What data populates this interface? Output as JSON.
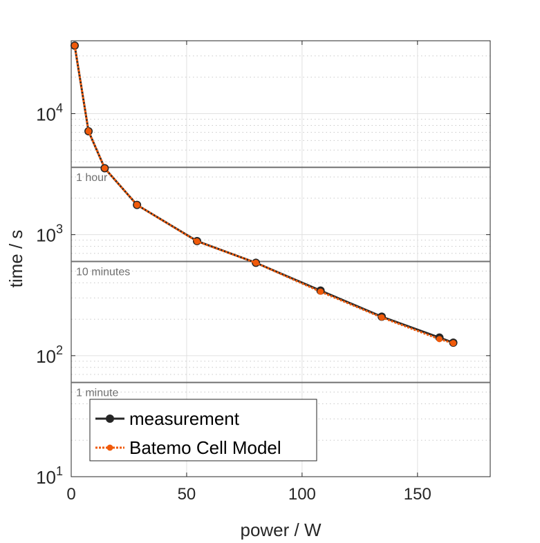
{
  "chart_data": {
    "type": "line",
    "title": "",
    "xlabel": "power / W",
    "ylabel": "time / s",
    "xlim": [
      0,
      181.5
    ],
    "ylim": [
      10,
      40000
    ],
    "yscale": "log",
    "grid": true,
    "xticks": [
      0,
      50,
      100,
      150
    ],
    "xtick_labels": [
      "0",
      "50",
      "100",
      "150"
    ],
    "yticks": [
      10,
      100,
      1000,
      10000
    ],
    "ytick_labels": [
      {
        "base": "10",
        "exp": "1"
      },
      {
        "base": "10",
        "exp": "2"
      },
      {
        "base": "10",
        "exp": "3"
      },
      {
        "base": "10",
        "exp": "4"
      }
    ],
    "reference_lines": [
      {
        "label": "1 hour",
        "y": 3600
      },
      {
        "label": "10 minutes",
        "y": 600
      },
      {
        "label": "1 minute",
        "y": 60
      }
    ],
    "series": [
      {
        "name": "measurement",
        "color": "#262626",
        "x": [
          1.5,
          7.5,
          14.5,
          28.5,
          54.5,
          80,
          108,
          134.5,
          159.5,
          165.5
        ],
        "y": [
          36500,
          7150,
          3540,
          1760,
          885,
          585,
          345,
          210,
          141,
          128
        ]
      },
      {
        "name": "Batemo Cell Model",
        "color": "#f05a0a",
        "x": [
          1.5,
          7.5,
          14.5,
          28.5,
          54.5,
          80,
          108,
          134.5,
          159.5,
          165.5
        ],
        "y": [
          36500,
          7150,
          3540,
          1760,
          880,
          585,
          338,
          207,
          137,
          127
        ]
      }
    ],
    "legend_position": "bottom-left"
  }
}
